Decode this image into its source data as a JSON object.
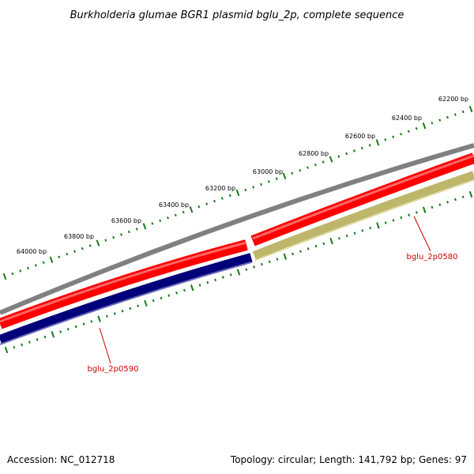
{
  "title": "Burkholderia glumae BGR1 plasmid bglu_2p, complete sequence",
  "accession": "Accession: NC_012718",
  "summary": "Topology: circular; Length: 141,792 bp; Genes: 97",
  "colors": {
    "backbone": "#808080",
    "forward_strand": "#ff0000",
    "reverse_strand_gene_0590": "#00007a",
    "reverse_strand_gene_0580": "#bdb76b",
    "tick": "#1a7a1a",
    "gene_label": "#cc0000"
  },
  "ruler": {
    "labels": [
      "62200 bp",
      "62400 bp",
      "62600 bp",
      "62800 bp",
      "63000 bp",
      "63200 bp",
      "63400 bp",
      "63600 bp",
      "63800 bp",
      "64000 bp"
    ]
  },
  "genes": [
    {
      "name": "bglu_2p0580",
      "strand": "reverse"
    },
    {
      "name": "bglu_2p0590",
      "strand": "reverse"
    }
  ]
}
